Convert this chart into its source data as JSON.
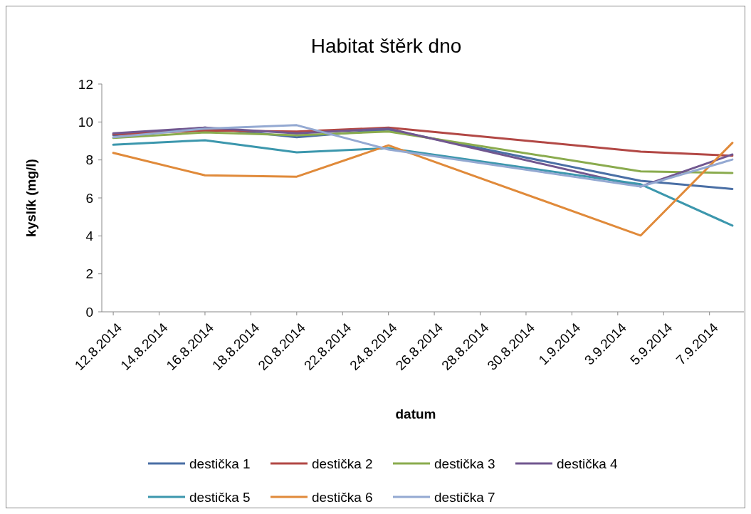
{
  "chart_data": {
    "type": "line",
    "title": "Habitat štěrk dno",
    "xlabel": "datum",
    "ylabel": "kyslík (mg/l)",
    "x": [
      "2014-08-12",
      "2014-08-16",
      "2014-08-20",
      "2014-08-24",
      "2014-09-04",
      "2014-09-08"
    ],
    "series": [
      {
        "name": "destička 1",
        "color": "#4a6fa5",
        "values": [
          9.3,
          9.7,
          9.2,
          9.6,
          6.9,
          6.47
        ]
      },
      {
        "name": "destička 2",
        "color": "#b24845",
        "values": [
          9.35,
          9.55,
          9.5,
          9.7,
          8.44,
          8.22
        ]
      },
      {
        "name": "destička 3",
        "color": "#8aab4e",
        "values": [
          9.16,
          9.45,
          9.3,
          9.5,
          7.4,
          7.31
        ]
      },
      {
        "name": "destička 4",
        "color": "#71578f",
        "values": [
          9.4,
          9.7,
          9.4,
          9.65,
          6.6,
          8.29
        ]
      },
      {
        "name": "destička 5",
        "color": "#3c97ad",
        "values": [
          8.8,
          9.04,
          8.4,
          8.62,
          6.72,
          4.54
        ]
      },
      {
        "name": "destička 6",
        "color": "#e08a3a",
        "values": [
          8.37,
          7.19,
          7.12,
          8.77,
          4.02,
          8.9
        ]
      },
      {
        "name": "destička 7",
        "color": "#94a9d2",
        "values": [
          9.2,
          9.65,
          9.83,
          8.55,
          6.6,
          8.02
        ]
      }
    ],
    "xlim": [
      "2014-08-11T12:00",
      "2014-09-08T12:00"
    ],
    "xticks": [
      {
        "value": "2014-08-12",
        "label": "12.8.2014"
      },
      {
        "value": "2014-08-14",
        "label": "14.8.2014"
      },
      {
        "value": "2014-08-16",
        "label": "16.8.2014"
      },
      {
        "value": "2014-08-18",
        "label": "18.8.2014"
      },
      {
        "value": "2014-08-20",
        "label": "20.8.2014"
      },
      {
        "value": "2014-08-22",
        "label": "22.8.2014"
      },
      {
        "value": "2014-08-24",
        "label": "24.8.2014"
      },
      {
        "value": "2014-08-26",
        "label": "26.8.2014"
      },
      {
        "value": "2014-08-28",
        "label": "28.8.2014"
      },
      {
        "value": "2014-08-30",
        "label": "30.8.2014"
      },
      {
        "value": "2014-09-01",
        "label": "1.9.2014"
      },
      {
        "value": "2014-09-03",
        "label": "3.9.2014"
      },
      {
        "value": "2014-09-05",
        "label": "5.9.2014"
      },
      {
        "value": "2014-09-07",
        "label": "7.9.2014"
      }
    ],
    "ylim": [
      0,
      12
    ],
    "yticks": [
      0,
      2,
      4,
      6,
      8,
      10,
      12
    ],
    "legend": "bottom",
    "grid": false,
    "marker": "none",
    "line_style": "solid"
  }
}
